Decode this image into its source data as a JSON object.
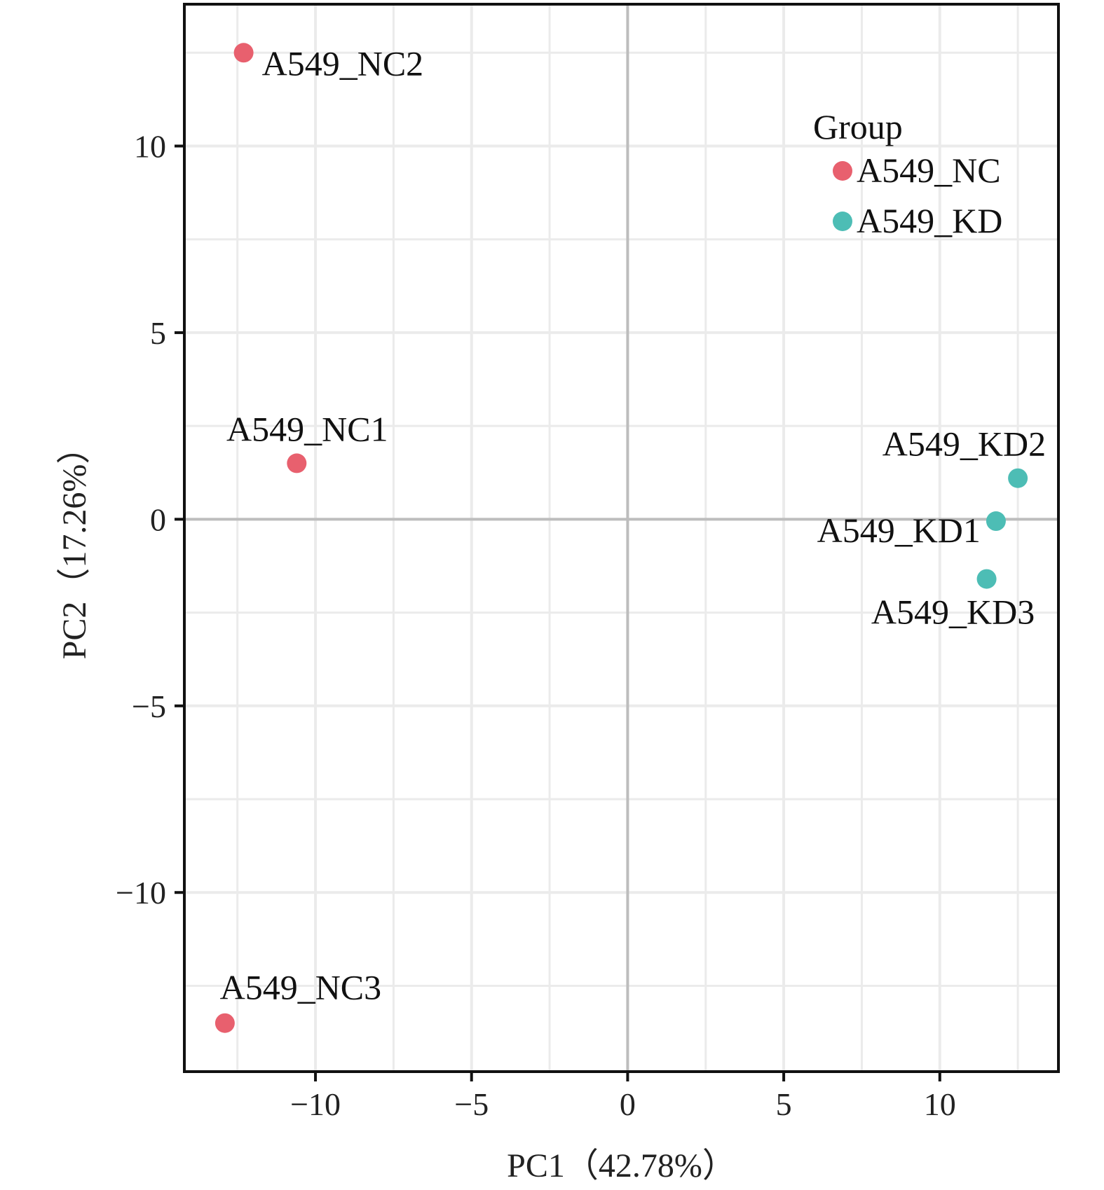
{
  "chart_data": {
    "type": "scatter",
    "title": "",
    "xlabel": "PC1（42.78%）",
    "ylabel": "PC2（17.26%）",
    "xlim": [
      -14.2,
      13.8
    ],
    "ylim": [
      -14.8,
      13.8
    ],
    "x_ticks": [
      -10,
      -5,
      0,
      5,
      10
    ],
    "y_ticks": [
      -10,
      -5,
      0,
      5,
      10
    ],
    "x_tick_labels": [
      "−10",
      "−5",
      "0",
      "5",
      "10"
    ],
    "y_tick_labels": [
      "−10",
      "−5",
      "0",
      "5",
      "10"
    ],
    "grid": true,
    "legend": {
      "title": "Group",
      "position": "top-right",
      "entries": [
        {
          "label": "A549_NC",
          "color": "#E8606E"
        },
        {
          "label": "A549_KD",
          "color": "#4DBDB5"
        }
      ]
    },
    "series": [
      {
        "name": "A549_NC",
        "color": "#E8606E",
        "points": [
          {
            "label": "A549_NC1",
            "x": -10.6,
            "y": 1.5
          },
          {
            "label": "A549_NC2",
            "x": -12.3,
            "y": 12.5
          },
          {
            "label": "A549_NC3",
            "x": -12.9,
            "y": -13.5
          }
        ]
      },
      {
        "name": "A549_KD",
        "color": "#4DBDB5",
        "points": [
          {
            "label": "A549_KD1",
            "x": 11.8,
            "y": -0.05
          },
          {
            "label": "A549_KD2",
            "x": 12.5,
            "y": 1.1
          },
          {
            "label": "A549_KD3",
            "x": 11.5,
            "y": -1.6
          }
        ]
      }
    ]
  }
}
